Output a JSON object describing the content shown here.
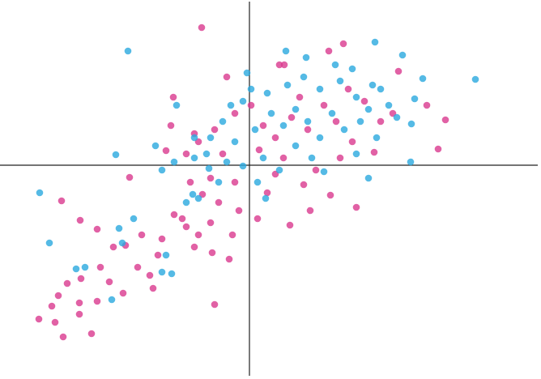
{
  "chart_data": {
    "type": "scatter",
    "xlim": [
      -6.16,
      7.2
    ],
    "ylim": [
      -5.28,
      4.08
    ],
    "series": [
      {
        "color": "#d93a8e",
        "x": [
          -1.18,
          2.32,
          1.96,
          0.74,
          0.86,
          -1.88,
          -0.56,
          3.68,
          4.38,
          4.84,
          4.66,
          -1.94,
          -2.06,
          -2.96,
          -4.64,
          -4.18,
          -3.76,
          -5.2,
          -4.6,
          -3.9,
          -4.8,
          -4.2,
          -4.88,
          -4.72,
          -4.5,
          -4.16,
          -3.68,
          -3.46,
          -3.12,
          -3.76,
          -4.2,
          -2.38,
          -0.86,
          -0.5,
          -0.92,
          -1.36,
          -2.76,
          -2.46,
          -3.06,
          -2.66,
          -2.16,
          -1.86,
          -1.56,
          -1.26,
          -0.96,
          -0.42,
          -0.26,
          0.2,
          1.0,
          1.5,
          2.64,
          2.0,
          1.34,
          0.44,
          -0.76,
          -1.16,
          -1.46,
          -0.96,
          -0.36,
          0.64,
          1.64,
          2.24,
          3.08,
          3.24,
          2.84,
          2.44,
          1.84,
          1.44,
          1.04,
          0.64,
          0.34,
          0.04,
          -0.36,
          -0.86,
          -1.26,
          -1.56,
          -0.66,
          0.24,
          0.84,
          1.24,
          2.14,
          2.54,
          3.54,
          -1.36,
          -1.66,
          -2.26,
          -3.36
        ],
        "values": [
          3.4,
          3.0,
          2.82,
          2.48,
          2.48,
          1.68,
          2.18,
          2.32,
          1.48,
          1.12,
          0.4,
          0.98,
          0.36,
          -0.3,
          -0.88,
          -1.36,
          -1.58,
          -3.8,
          -4.24,
          -4.16,
          -3.88,
          -3.68,
          -3.48,
          -3.22,
          -2.92,
          -2.8,
          -2.52,
          -2.88,
          -3.16,
          -3.36,
          -3.4,
          -3.04,
          -3.44,
          -2.32,
          -2.16,
          -2.02,
          -2.52,
          -2.72,
          -1.98,
          -1.72,
          -1.82,
          -1.22,
          -1.52,
          -1.72,
          -1.42,
          -1.72,
          -1.12,
          -1.32,
          -1.48,
          -1.12,
          -1.04,
          -0.74,
          -0.48,
          -0.68,
          -0.92,
          -0.72,
          -0.42,
          -0.32,
          -0.42,
          -0.22,
          -0.12,
          0.18,
          0.32,
          1.08,
          1.58,
          1.88,
          1.48,
          0.88,
          1.18,
          0.68,
          0.98,
          1.48,
          1.28,
          0.88,
          0.58,
          0.28,
          0.28,
          0.38,
          0.18,
          1.68,
          1.08,
          0.58,
          1.28,
          0.78,
          -1.32,
          -2.22,
          -2.02
        ]
      },
      {
        "color": "#2aa9df",
        "x": [
          -3.0,
          3.1,
          3.78,
          5.58,
          0.9,
          1.4,
          2.12,
          2.54,
          4.28,
          4.08,
          4.0,
          3.98,
          2.94,
          -3.3,
          -2.32,
          -1.8,
          -5.18,
          -4.94,
          -4.28,
          -4.06,
          -3.4,
          -3.22,
          -2.86,
          -3.14,
          -2.16,
          -1.92,
          -2.06,
          -1.4,
          -1.26,
          -1.56,
          -2.16,
          -1.86,
          -1.36,
          -1.06,
          -0.76,
          -0.16,
          0.2,
          0.4,
          0.74,
          1.84,
          2.64,
          3.14,
          3.44,
          3.04,
          2.64,
          2.24,
          1.74,
          1.34,
          0.94,
          0.44,
          0.04,
          -0.16,
          -0.46,
          -0.66,
          -0.96,
          -0.36,
          0.14,
          0.54,
          0.84,
          1.14,
          1.44,
          1.74,
          2.04,
          2.34,
          2.74,
          2.94,
          3.24,
          3.64,
          1.14,
          1.54,
          0.34,
          -0.56,
          -1.0,
          -0.06,
          -1.36
        ],
        "values": [
          2.82,
          3.04,
          2.72,
          2.12,
          2.82,
          2.66,
          2.48,
          2.38,
          2.14,
          1.64,
          1.02,
          0.08,
          -0.32,
          0.26,
          0.48,
          1.48,
          -0.68,
          -1.92,
          -2.56,
          -2.52,
          -3.32,
          -1.56,
          -1.32,
          -1.92,
          -2.64,
          -2.68,
          -2.22,
          -0.72,
          -0.82,
          -0.92,
          -0.12,
          0.08,
          0.18,
          0.28,
          -0.42,
          -0.02,
          -0.42,
          -0.82,
          -0.12,
          -0.16,
          0.28,
          0.68,
          1.48,
          1.98,
          1.68,
          2.08,
          1.88,
          2.18,
          1.98,
          1.78,
          1.88,
          1.58,
          1.48,
          1.08,
          0.68,
          0.58,
          0.88,
          1.28,
          0.98,
          1.38,
          1.08,
          0.68,
          1.28,
          0.88,
          1.08,
          1.38,
          1.88,
          1.18,
          0.48,
          0.18,
          0.18,
          0.08,
          -0.08,
          2.28,
          0.68
        ]
      }
    ]
  }
}
